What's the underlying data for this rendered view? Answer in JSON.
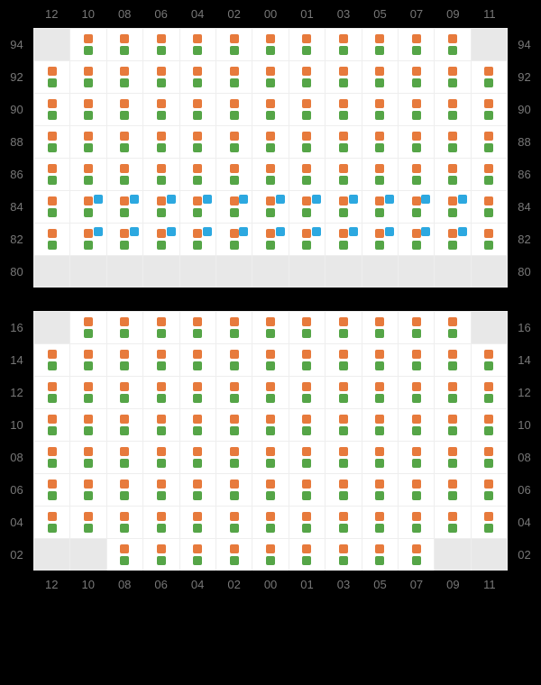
{
  "colors": {
    "orange": "#e77a3c",
    "green": "#55a547",
    "blue": "#2ca8e0",
    "empty_bg": "#e8e8e8",
    "filled_bg": "#ffffff",
    "grid_line": "#eeeeee",
    "page_bg": "#000000",
    "label": "#777777"
  },
  "columns": [
    "12",
    "10",
    "08",
    "06",
    "04",
    "02",
    "00",
    "01",
    "03",
    "05",
    "07",
    "09",
    "11"
  ],
  "top_block": {
    "show_col_labels_top": true,
    "show_col_labels_bottom": false,
    "rows": [
      {
        "label": "94",
        "cells": [
          0,
          1,
          1,
          1,
          1,
          1,
          1,
          1,
          1,
          1,
          1,
          1,
          0
        ],
        "blue": [
          0,
          0,
          0,
          0,
          0,
          0,
          0,
          0,
          0,
          0,
          0,
          0,
          0
        ]
      },
      {
        "label": "92",
        "cells": [
          1,
          1,
          1,
          1,
          1,
          1,
          1,
          1,
          1,
          1,
          1,
          1,
          1
        ],
        "blue": [
          0,
          0,
          0,
          0,
          0,
          0,
          0,
          0,
          0,
          0,
          0,
          0,
          0
        ]
      },
      {
        "label": "90",
        "cells": [
          1,
          1,
          1,
          1,
          1,
          1,
          1,
          1,
          1,
          1,
          1,
          1,
          1
        ],
        "blue": [
          0,
          0,
          0,
          0,
          0,
          0,
          0,
          0,
          0,
          0,
          0,
          0,
          0
        ]
      },
      {
        "label": "88",
        "cells": [
          1,
          1,
          1,
          1,
          1,
          1,
          1,
          1,
          1,
          1,
          1,
          1,
          1
        ],
        "blue": [
          0,
          0,
          0,
          0,
          0,
          0,
          0,
          0,
          0,
          0,
          0,
          0,
          0
        ]
      },
      {
        "label": "86",
        "cells": [
          1,
          1,
          1,
          1,
          1,
          1,
          1,
          1,
          1,
          1,
          1,
          1,
          1
        ],
        "blue": [
          0,
          0,
          0,
          0,
          0,
          0,
          0,
          0,
          0,
          0,
          0,
          0,
          0
        ]
      },
      {
        "label": "84",
        "cells": [
          1,
          1,
          1,
          1,
          1,
          1,
          1,
          1,
          1,
          1,
          1,
          1,
          1
        ],
        "blue": [
          0,
          1,
          1,
          1,
          1,
          1,
          1,
          1,
          1,
          1,
          1,
          1,
          0
        ]
      },
      {
        "label": "82",
        "cells": [
          1,
          1,
          1,
          1,
          1,
          1,
          1,
          1,
          1,
          1,
          1,
          1,
          1
        ],
        "blue": [
          0,
          1,
          1,
          1,
          1,
          1,
          1,
          1,
          1,
          1,
          1,
          1,
          0
        ]
      },
      {
        "label": "80",
        "cells": [
          0,
          0,
          0,
          0,
          0,
          0,
          0,
          0,
          0,
          0,
          0,
          0,
          0
        ],
        "blue": [
          0,
          0,
          0,
          0,
          0,
          0,
          0,
          0,
          0,
          0,
          0,
          0,
          0
        ]
      }
    ]
  },
  "bottom_block": {
    "show_col_labels_top": false,
    "show_col_labels_bottom": true,
    "rows": [
      {
        "label": "16",
        "cells": [
          0,
          1,
          1,
          1,
          1,
          1,
          1,
          1,
          1,
          1,
          1,
          1,
          0
        ],
        "blue": [
          0,
          0,
          0,
          0,
          0,
          0,
          0,
          0,
          0,
          0,
          0,
          0,
          0
        ]
      },
      {
        "label": "14",
        "cells": [
          1,
          1,
          1,
          1,
          1,
          1,
          1,
          1,
          1,
          1,
          1,
          1,
          1
        ],
        "blue": [
          0,
          0,
          0,
          0,
          0,
          0,
          0,
          0,
          0,
          0,
          0,
          0,
          0
        ]
      },
      {
        "label": "12",
        "cells": [
          1,
          1,
          1,
          1,
          1,
          1,
          1,
          1,
          1,
          1,
          1,
          1,
          1
        ],
        "blue": [
          0,
          0,
          0,
          0,
          0,
          0,
          0,
          0,
          0,
          0,
          0,
          0,
          0
        ]
      },
      {
        "label": "10",
        "cells": [
          1,
          1,
          1,
          1,
          1,
          1,
          1,
          1,
          1,
          1,
          1,
          1,
          1
        ],
        "blue": [
          0,
          0,
          0,
          0,
          0,
          0,
          0,
          0,
          0,
          0,
          0,
          0,
          0
        ]
      },
      {
        "label": "08",
        "cells": [
          1,
          1,
          1,
          1,
          1,
          1,
          1,
          1,
          1,
          1,
          1,
          1,
          1
        ],
        "blue": [
          0,
          0,
          0,
          0,
          0,
          0,
          0,
          0,
          0,
          0,
          0,
          0,
          0
        ]
      },
      {
        "label": "06",
        "cells": [
          1,
          1,
          1,
          1,
          1,
          1,
          1,
          1,
          1,
          1,
          1,
          1,
          1
        ],
        "blue": [
          0,
          0,
          0,
          0,
          0,
          0,
          0,
          0,
          0,
          0,
          0,
          0,
          0
        ]
      },
      {
        "label": "04",
        "cells": [
          1,
          1,
          1,
          1,
          1,
          1,
          1,
          1,
          1,
          1,
          1,
          1,
          1
        ],
        "blue": [
          0,
          0,
          0,
          0,
          0,
          0,
          0,
          0,
          0,
          0,
          0,
          0,
          0
        ]
      },
      {
        "label": "02",
        "cells": [
          0,
          0,
          1,
          1,
          1,
          1,
          1,
          1,
          1,
          1,
          1,
          0,
          0
        ],
        "blue": [
          0,
          0,
          0,
          0,
          0,
          0,
          0,
          0,
          0,
          0,
          0,
          0,
          0
        ]
      }
    ]
  }
}
